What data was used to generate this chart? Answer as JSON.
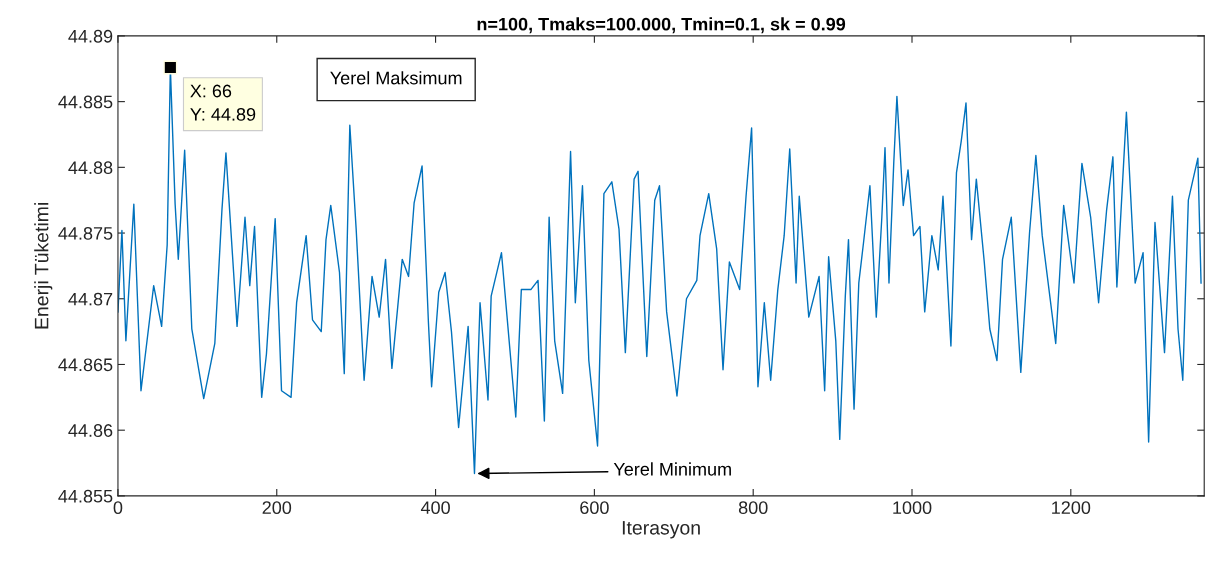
{
  "chart_data": {
    "type": "line",
    "title": "n=100, Tmaks=100.000, Tmin=0.1, sk = 0.99",
    "xlabel": "Iterasyon",
    "ylabel": "Enerji Tüketimi",
    "xlim": [
      0,
      1368
    ],
    "xticks": [
      0,
      200,
      400,
      600,
      800,
      1000,
      1200
    ],
    "ylim": [
      44.855,
      44.89
    ],
    "yticks": [
      44.855,
      44.86,
      44.865,
      44.87,
      44.875,
      44.88,
      44.885,
      44.89
    ],
    "grid": false,
    "marker": "none",
    "line_style": "solid",
    "annotations": [
      {
        "text": "X: 66\nY: 44.89",
        "x": 66,
        "y": 44.8876
      },
      "Yerel Maksimum",
      {
        "text": "Yerel Minimum",
        "x": 449,
        "y": 44.8567
      }
    ],
    "series": [
      {
        "color": "#0072bd",
        "x": [
          0,
          5,
          10,
          20,
          29,
          45,
          55,
          62,
          66,
          72,
          76,
          84,
          93,
          108,
          122,
          131,
          136,
          150,
          160,
          166,
          172,
          181,
          187,
          198,
          206,
          218,
          225,
          237,
          245,
          256,
          262,
          268,
          279,
          285,
          292,
          300,
          310,
          320,
          329,
          337,
          345,
          358,
          366,
          373,
          383,
          391,
          395,
          404,
          412,
          420,
          429,
          441,
          449,
          456,
          466,
          470,
          483,
          501,
          508,
          520,
          529,
          537,
          543,
          550,
          560,
          570,
          576,
          585,
          593,
          604,
          612,
          622,
          631,
          639,
          650,
          655,
          666,
          676,
          682,
          691,
          704,
          716,
          729,
          733,
          744,
          754,
          762,
          770,
          783,
          791,
          798,
          806,
          814,
          822,
          831,
          839,
          846,
          854,
          858,
          870,
          883,
          890,
          895,
          904,
          909,
          916,
          920,
          927,
          933,
          939,
          947,
          955,
          962,
          966,
          971,
          977,
          981,
          989,
          995,
          1002,
          1010,
          1016,
          1025,
          1033,
          1039,
          1049,
          1056,
          1062,
          1068,
          1075,
          1081,
          1091,
          1098,
          1107,
          1114,
          1125,
          1137,
          1148,
          1156,
          1164,
          1181,
          1191,
          1204,
          1214,
          1225,
          1235,
          1245,
          1253,
          1258,
          1270,
          1281,
          1291,
          1298,
          1306,
          1318,
          1328,
          1335,
          1341,
          1348,
          1360,
          1364
        ],
        "values": [
          44.869,
          44.8752,
          44.8668,
          44.8772,
          44.863,
          44.871,
          44.8679,
          44.8741,
          44.8876,
          44.8772,
          44.873,
          44.8813,
          44.8677,
          44.8624,
          44.8666,
          44.8768,
          44.8811,
          44.8679,
          44.8762,
          44.871,
          44.8755,
          44.8625,
          44.8658,
          44.8761,
          44.863,
          44.8625,
          44.8697,
          44.8748,
          44.8684,
          44.8675,
          44.8745,
          44.8771,
          44.872,
          44.8643,
          44.8832,
          44.8753,
          44.8638,
          44.8717,
          44.8686,
          44.873,
          44.8647,
          44.873,
          44.8717,
          44.8773,
          44.8801,
          44.8682,
          44.8633,
          44.8705,
          44.872,
          44.8675,
          44.8602,
          44.8679,
          44.8567,
          44.8697,
          44.8623,
          44.8702,
          44.8735,
          44.861,
          44.8707,
          44.8707,
          44.8714,
          44.8607,
          44.8762,
          44.8668,
          44.8628,
          44.8812,
          44.8697,
          44.8786,
          44.8653,
          44.8588,
          44.878,
          44.8789,
          44.8753,
          44.8659,
          44.8791,
          44.8797,
          44.8656,
          44.8775,
          44.8786,
          44.869,
          44.8626,
          44.87,
          44.8714,
          44.8748,
          44.878,
          44.8738,
          44.8646,
          44.8728,
          44.8707,
          44.8778,
          44.883,
          44.8633,
          44.8697,
          44.8638,
          44.8707,
          44.8748,
          44.8814,
          44.8712,
          44.8778,
          44.8686,
          44.8717,
          44.863,
          44.8732,
          44.8668,
          44.8593,
          44.8702,
          44.8745,
          44.8616,
          44.8712,
          44.8743,
          44.8786,
          44.8686,
          44.8762,
          44.8815,
          44.8712,
          44.8803,
          44.8854,
          44.8771,
          44.8798,
          44.8748,
          44.8755,
          44.869,
          44.8748,
          44.8722,
          44.8778,
          44.8664,
          44.8796,
          44.882,
          44.8849,
          44.8745,
          44.8791,
          44.8728,
          44.8677,
          44.8653,
          44.873,
          44.8762,
          44.8644,
          44.875,
          44.8809,
          44.8748,
          44.8666,
          44.8771,
          44.8712,
          44.8803,
          44.8762,
          44.8697,
          44.8767,
          44.8808,
          44.8709,
          44.8842,
          44.8712,
          44.8735,
          44.8591,
          44.8758,
          44.8659,
          44.8778,
          44.8677,
          44.8638,
          44.8775,
          44.8807,
          44.8712
        ]
      }
    ]
  }
}
